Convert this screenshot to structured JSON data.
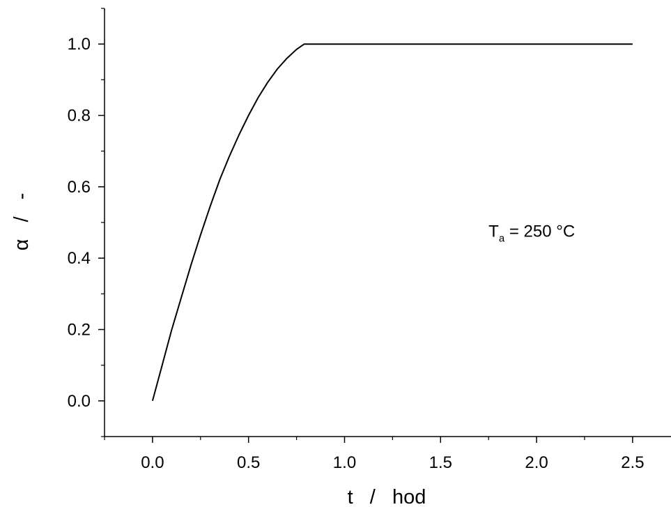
{
  "chart_data": {
    "type": "line",
    "xlabel": "t   /   hod",
    "ylabel": "α   /   -",
    "xlim": [
      -0.25,
      2.7
    ],
    "ylim": [
      -0.1,
      1.1
    ],
    "xticks": [
      "0.0",
      "0.5",
      "1.0",
      "1.5",
      "2.0",
      "2.5"
    ],
    "xtick_values": [
      0.0,
      0.5,
      1.0,
      1.5,
      2.0,
      2.5
    ],
    "yticks": [
      "0.0",
      "0.2",
      "0.4",
      "0.6",
      "0.8",
      "1.0"
    ],
    "ytick_values": [
      0.0,
      0.2,
      0.4,
      0.6,
      0.8,
      1.0
    ],
    "grid": false,
    "annotation": {
      "main": "T",
      "sub": "a",
      "rest": " = 250 °C",
      "x": 1.75,
      "y": 0.46
    },
    "series": [
      {
        "x": [
          0.0,
          0.05,
          0.1,
          0.15,
          0.2,
          0.25,
          0.3,
          0.35,
          0.4,
          0.45,
          0.5,
          0.55,
          0.6,
          0.65,
          0.7,
          0.75,
          0.79,
          0.8,
          1.0,
          1.5,
          2.0,
          2.5
        ],
        "y": [
          0.0,
          0.1,
          0.2,
          0.29,
          0.38,
          0.465,
          0.545,
          0.62,
          0.685,
          0.745,
          0.8,
          0.85,
          0.893,
          0.93,
          0.96,
          0.985,
          1.0,
          1.0,
          1.0,
          1.0,
          1.0,
          1.0
        ]
      }
    ]
  }
}
